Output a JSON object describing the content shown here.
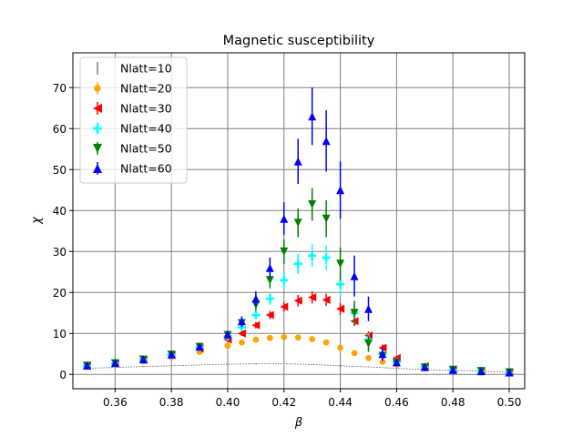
{
  "chart_data": {
    "type": "scatter",
    "title": "Magnetic susceptibility",
    "xlabel": "β",
    "ylabel": "χ",
    "xlim": [
      0.345,
      0.5055
    ],
    "ylim": [
      -3.5,
      78.5
    ],
    "xticks": [
      0.36,
      0.38,
      0.4,
      0.42,
      0.44,
      0.46,
      0.48,
      0.5
    ],
    "xtick_labels": [
      "0.36",
      "0.38",
      "0.40",
      "0.42",
      "0.44",
      "0.46",
      "0.48",
      "0.50"
    ],
    "yticks": [
      0,
      10,
      20,
      30,
      40,
      50,
      60,
      70
    ],
    "ytick_labels": [
      "0",
      "10",
      "20",
      "30",
      "40",
      "50",
      "60",
      "70"
    ],
    "grid": true,
    "grid_color": "#808080",
    "legend_position": "top-left",
    "series": [
      {
        "name": "Nlatt=10",
        "color": "#808080",
        "marker": "none",
        "x": [
          0.35,
          0.36,
          0.37,
          0.38,
          0.39,
          0.4,
          0.41,
          0.42,
          0.43,
          0.44,
          0.45,
          0.46,
          0.47,
          0.48,
          0.49,
          0.5
        ],
        "y": [
          1.5,
          1.7,
          1.9,
          2.1,
          2.3,
          2.5,
          2.6,
          2.6,
          2.4,
          2.1,
          1.8,
          1.5,
          1.2,
          1.0,
          0.8,
          0.6
        ],
        "err": [
          0.1,
          0.1,
          0.1,
          0.1,
          0.1,
          0.1,
          0.1,
          0.1,
          0.1,
          0.1,
          0.1,
          0.1,
          0.1,
          0.1,
          0.1,
          0.1
        ]
      },
      {
        "name": "Nlatt=20",
        "color": "#ffa500",
        "marker": "circle",
        "x": [
          0.35,
          0.36,
          0.37,
          0.38,
          0.39,
          0.4,
          0.405,
          0.41,
          0.415,
          0.42,
          0.425,
          0.43,
          0.435,
          0.44,
          0.445,
          0.45,
          0.455,
          0.46,
          0.47,
          0.48,
          0.49,
          0.5
        ],
        "y": [
          2.0,
          2.5,
          3.2,
          4.2,
          5.5,
          7.0,
          7.8,
          8.5,
          8.9,
          9.1,
          9.0,
          8.6,
          7.8,
          6.5,
          5.2,
          4.0,
          3.1,
          2.4,
          1.5,
          1.0,
          0.7,
          0.5
        ],
        "err": [
          0.2,
          0.2,
          0.2,
          0.3,
          0.3,
          0.3,
          0.3,
          0.3,
          0.3,
          0.3,
          0.3,
          0.3,
          0.3,
          0.3,
          0.3,
          0.3,
          0.3,
          0.2,
          0.2,
          0.2,
          0.1,
          0.1
        ]
      },
      {
        "name": "Nlatt=30",
        "color": "#ff0000",
        "marker": "triangle-left",
        "x": [
          0.35,
          0.36,
          0.37,
          0.38,
          0.39,
          0.4,
          0.405,
          0.41,
          0.415,
          0.42,
          0.425,
          0.43,
          0.435,
          0.44,
          0.445,
          0.45,
          0.455,
          0.46,
          0.47,
          0.48,
          0.49,
          0.5
        ],
        "y": [
          2.1,
          2.7,
          3.5,
          4.7,
          6.3,
          8.5,
          10.0,
          12.0,
          14.5,
          16.5,
          18.0,
          18.8,
          18.2,
          16.0,
          13.0,
          9.5,
          6.5,
          4.0,
          2.0,
          1.2,
          0.8,
          0.5
        ],
        "err": [
          0.2,
          0.2,
          0.3,
          0.3,
          0.4,
          0.5,
          0.6,
          0.8,
          1.0,
          1.2,
          1.4,
          1.5,
          1.5,
          1.4,
          1.2,
          1.0,
          0.8,
          0.5,
          0.3,
          0.2,
          0.1,
          0.1
        ]
      },
      {
        "name": "Nlatt=40",
        "color": "#00ffff",
        "marker": "plus",
        "x": [
          0.35,
          0.36,
          0.37,
          0.38,
          0.39,
          0.4,
          0.405,
          0.41,
          0.415,
          0.42,
          0.425,
          0.43,
          0.435,
          0.44,
          0.445,
          0.45,
          0.455,
          0.46,
          0.47,
          0.48,
          0.49,
          0.5
        ],
        "y": [
          2.1,
          2.7,
          3.6,
          4.8,
          6.6,
          9.3,
          11.5,
          14.5,
          18.5,
          23.0,
          27.0,
          29.0,
          28.5,
          22.0,
          15.0,
          8.5,
          5.0,
          3.0,
          1.8,
          1.1,
          0.8,
          0.5
        ],
        "err": [
          0.2,
          0.2,
          0.3,
          0.3,
          0.5,
          0.6,
          0.8,
          1.0,
          1.5,
          2.0,
          2.5,
          2.8,
          3.0,
          2.8,
          2.2,
          1.5,
          1.0,
          0.6,
          0.3,
          0.2,
          0.1,
          0.1
        ]
      },
      {
        "name": "Nlatt=50",
        "color": "#008000",
        "marker": "triangle-down",
        "x": [
          0.35,
          0.36,
          0.37,
          0.38,
          0.39,
          0.4,
          0.405,
          0.41,
          0.415,
          0.42,
          0.425,
          0.43,
          0.435,
          0.44,
          0.445,
          0.45,
          0.455,
          0.46,
          0.47,
          0.48,
          0.49,
          0.5
        ],
        "y": [
          2.1,
          2.7,
          3.6,
          4.8,
          6.7,
          9.6,
          12.5,
          17.0,
          23.0,
          30.0,
          37.0,
          41.5,
          38.0,
          27.0,
          15.0,
          7.5,
          4.5,
          2.8,
          1.7,
          1.1,
          0.8,
          0.5
        ],
        "err": [
          0.2,
          0.2,
          0.3,
          0.3,
          0.5,
          0.7,
          1.0,
          1.5,
          2.0,
          3.0,
          3.5,
          4.0,
          4.5,
          4.0,
          3.0,
          2.0,
          1.2,
          0.7,
          0.3,
          0.2,
          0.1,
          0.1
        ]
      },
      {
        "name": "Nlatt=60",
        "color": "#0000ff",
        "marker": "triangle-up",
        "x": [
          0.35,
          0.36,
          0.37,
          0.38,
          0.39,
          0.4,
          0.405,
          0.41,
          0.415,
          0.42,
          0.425,
          0.43,
          0.435,
          0.44,
          0.445,
          0.45,
          0.455,
          0.46,
          0.47,
          0.48,
          0.49,
          0.5
        ],
        "y": [
          2.2,
          2.8,
          3.7,
          4.9,
          6.8,
          9.8,
          13.0,
          18.5,
          26.0,
          38.0,
          52.0,
          63.0,
          57.0,
          45.0,
          24.0,
          16.0,
          5.0,
          3.0,
          1.8,
          1.1,
          0.8,
          0.5
        ],
        "err": [
          0.2,
          0.2,
          0.3,
          0.3,
          0.5,
          0.8,
          1.2,
          1.8,
          2.5,
          4.0,
          5.5,
          7.0,
          7.5,
          7.0,
          5.0,
          3.0,
          1.5,
          0.8,
          0.4,
          0.2,
          0.1,
          0.1
        ]
      }
    ]
  }
}
